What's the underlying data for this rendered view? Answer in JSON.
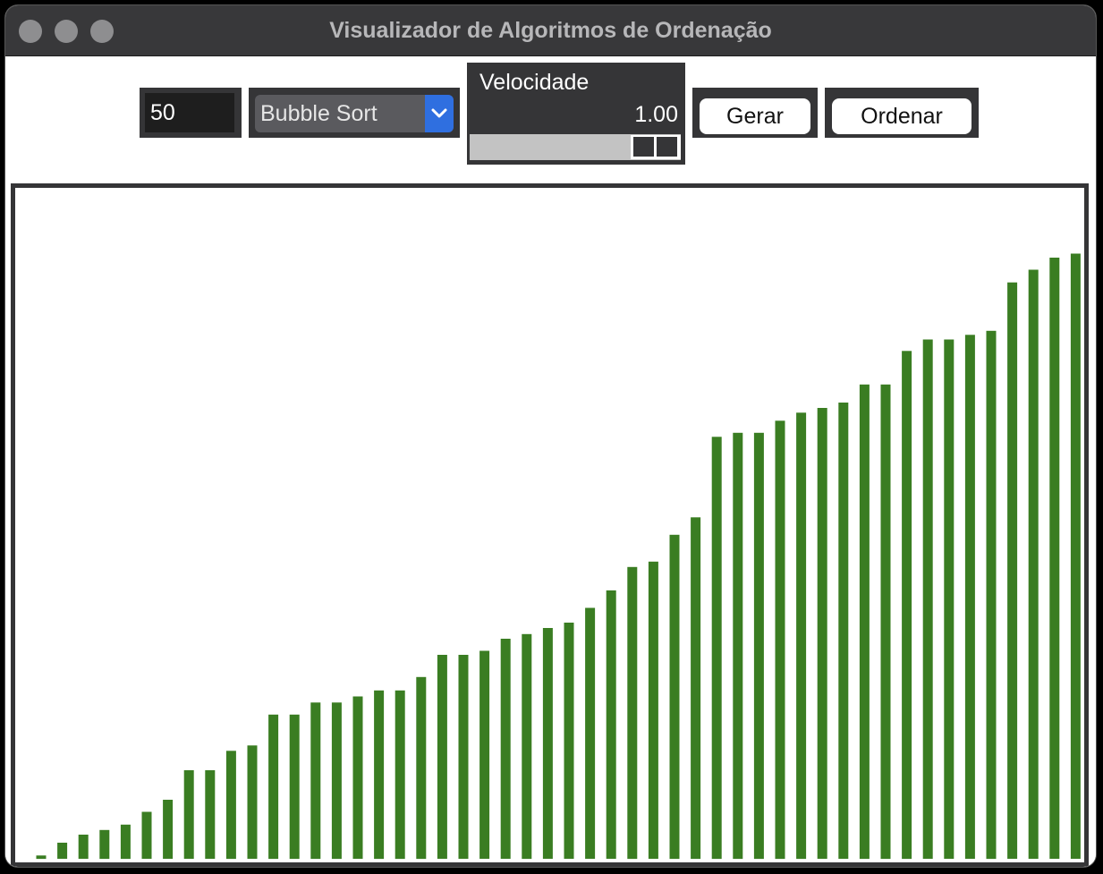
{
  "window": {
    "title": "Visualizador de Algoritmos de Ordenação"
  },
  "controls": {
    "size_value": "50",
    "algorithm": {
      "selected": "Bubble Sort",
      "arrow_icon": "chevron-down-icon"
    },
    "speed": {
      "label": "Velocidade",
      "value_text": "1.00",
      "value": 1.0
    },
    "generate_label": "Gerar",
    "sort_label": "Ordenar"
  },
  "colors": {
    "bar": "#3a7d22",
    "panel": "#353537",
    "accent": "#2f6fe0"
  },
  "chart_data": {
    "type": "bar",
    "title": "",
    "xlabel": "",
    "ylabel": "",
    "ylim": [
      0,
      100
    ],
    "values": [
      0.5,
      2.4,
      3.6,
      4.3,
      5.1,
      7.0,
      8.8,
      13.2,
      13.2,
      16.1,
      16.9,
      21.5,
      21.5,
      23.3,
      23.3,
      24.2,
      25.1,
      25.1,
      27.1,
      30.4,
      30.4,
      31.0,
      32.8,
      33.5,
      34.4,
      35.2,
      37.4,
      40.0,
      43.5,
      44.3,
      48.3,
      50.9,
      62.9,
      63.5,
      63.5,
      65.3,
      66.5,
      67.2,
      68.0,
      70.7,
      70.7,
      75.7,
      77.4,
      77.4,
      78.1,
      78.7,
      85.9,
      87.8,
      89.6,
      90.2
    ]
  }
}
